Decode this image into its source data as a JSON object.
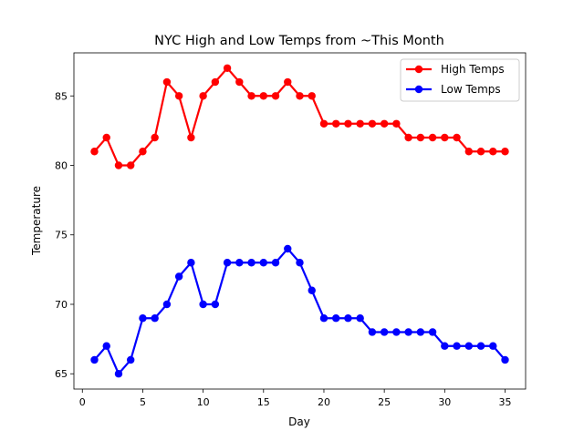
{
  "chart_data": {
    "type": "line",
    "title": "NYC High and Low Temps from ~This Month",
    "xlabel": "Day",
    "ylabel": "Temperature",
    "xlim": [
      -0.7,
      36.7
    ],
    "ylim": [
      63.9,
      88.1
    ],
    "xticks": [
      0,
      5,
      10,
      15,
      20,
      25,
      30,
      35
    ],
    "yticks": [
      65,
      70,
      75,
      80,
      85
    ],
    "grid": false,
    "legend_position": "top-right",
    "x": [
      1,
      2,
      3,
      4,
      5,
      6,
      7,
      8,
      9,
      10,
      11,
      12,
      13,
      14,
      15,
      16,
      17,
      18,
      19,
      20,
      21,
      22,
      23,
      24,
      25,
      26,
      27,
      28,
      29,
      30,
      31,
      32,
      33,
      34,
      35
    ],
    "series": [
      {
        "name": "High Temps",
        "color": "#ff0000",
        "values": [
          81,
          82,
          80,
          80,
          81,
          82,
          86,
          85,
          82,
          85,
          86,
          87,
          86,
          85,
          85,
          85,
          86,
          85,
          85,
          83,
          83,
          83,
          83,
          83,
          83,
          83,
          82,
          82,
          82,
          82,
          82,
          81,
          81,
          81,
          81
        ]
      },
      {
        "name": "Low Temps",
        "color": "#0000ff",
        "values": [
          66,
          67,
          65,
          66,
          69,
          69,
          70,
          72,
          73,
          70,
          70,
          73,
          73,
          73,
          73,
          73,
          74,
          73,
          71,
          69,
          69,
          69,
          69,
          68,
          68,
          68,
          68,
          68,
          68,
          67,
          67,
          67,
          67,
          67,
          66
        ]
      }
    ]
  }
}
